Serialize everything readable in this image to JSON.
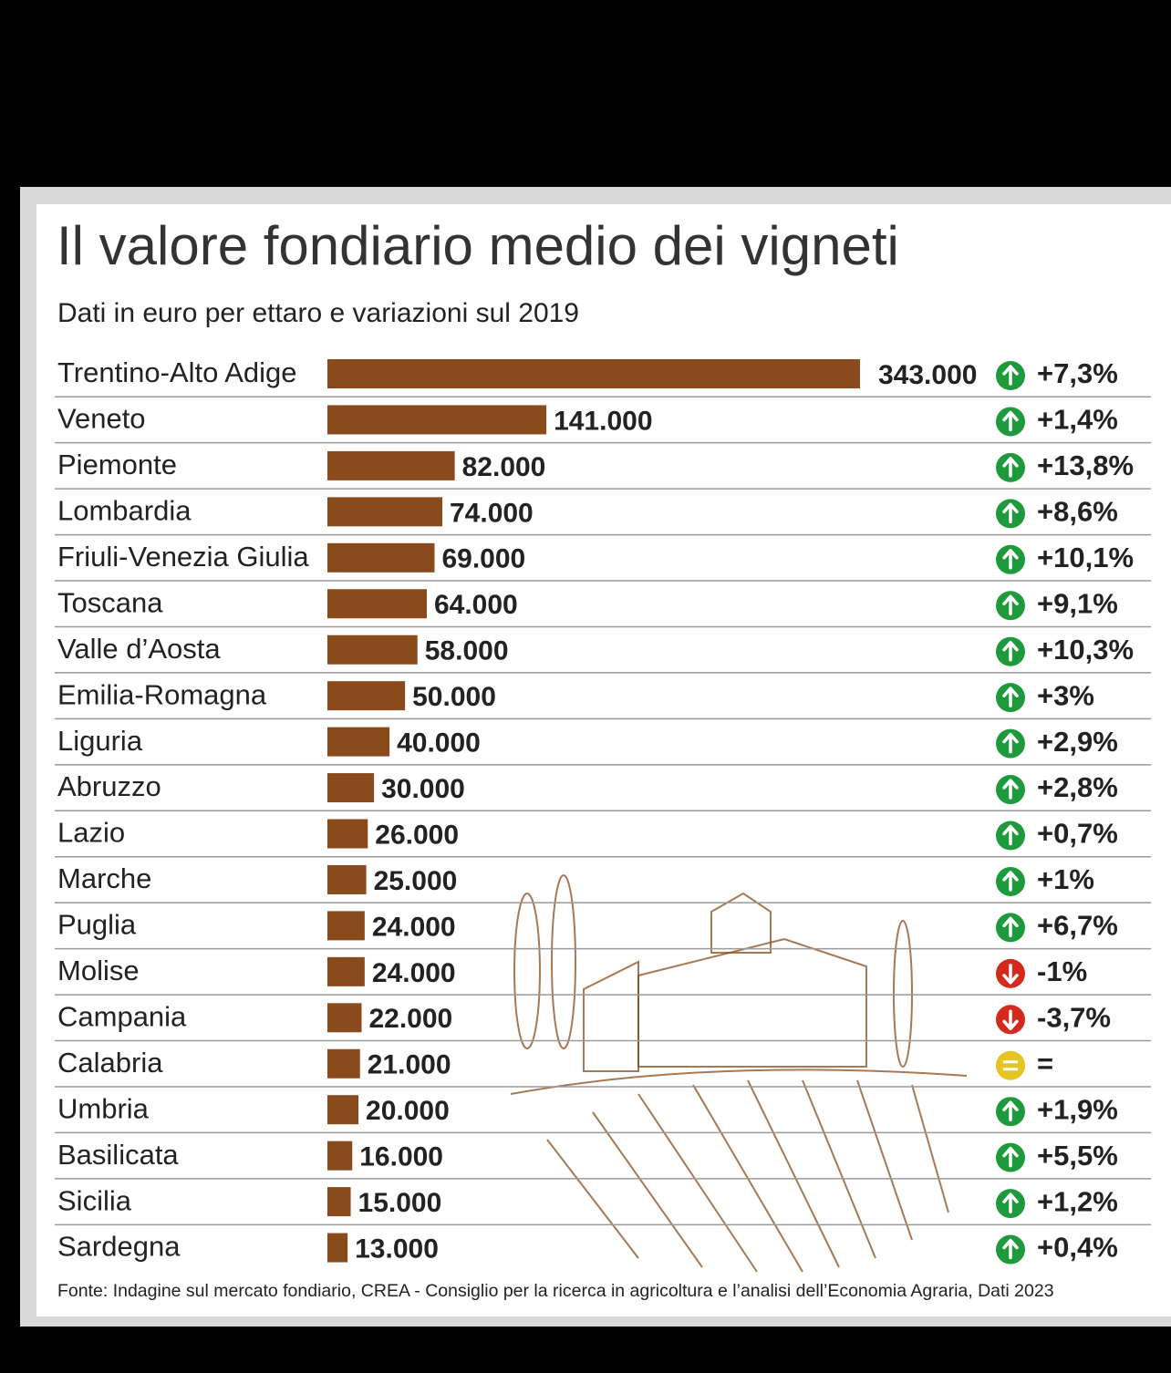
{
  "chart_data": {
    "type": "bar",
    "orientation": "horizontal",
    "title": "Il valore fondiario medio dei vigneti",
    "subtitle": "Dati in euro per ettaro e variazioni sul 2019",
    "source": "Fonte: Indagine sul mercato fondiario, CREA - Consiglio per la ricerca in agricoltura e l’analisi dell’Economia Agraria, Dati 2023",
    "categories": [
      "Trentino-Alto Adige",
      "Veneto",
      "Piemonte",
      "Lombardia",
      "Friuli-Venezia Giulia",
      "Toscana",
      "Valle d’Aosta",
      "Emilia-Romagna",
      "Liguria",
      "Abruzzo",
      "Lazio",
      "Marche",
      "Puglia",
      "Molise",
      "Campania",
      "Calabria",
      "Umbria",
      "Basilicata",
      "Sicilia",
      "Sardegna"
    ],
    "values": [
      343000,
      141000,
      82000,
      74000,
      69000,
      64000,
      58000,
      50000,
      40000,
      30000,
      26000,
      25000,
      24000,
      24000,
      22000,
      21000,
      20000,
      16000,
      15000,
      13000
    ],
    "value_labels": [
      "343.000",
      "141.000",
      "82.000",
      "74.000",
      "69.000",
      "64.000",
      "58.000",
      "50.000",
      "40.000",
      "30.000",
      "26.000",
      "25.000",
      "24.000",
      "24.000",
      "22.000",
      "21.000",
      "20.000",
      "16.000",
      "15.000",
      "13.000"
    ],
    "color": "#8a4b1c",
    "xlim": [
      0,
      343000
    ],
    "changes": {
      "values": [
        7.3,
        1.4,
        13.8,
        8.6,
        10.1,
        9.1,
        10.3,
        3,
        2.9,
        2.8,
        0.7,
        1,
        6.7,
        -1,
        -3.7,
        0,
        1.9,
        5.5,
        1.2,
        0.4
      ],
      "value_labels": [
        "+7,3%",
        "+1,4%",
        "+13,8%",
        "+8,6%",
        "+10,1%",
        "+9,1%",
        "+10,3%",
        "+3%",
        "+2,9%",
        "+2,8%",
        "+0,7%",
        "+1%",
        "+6,7%",
        "-1%",
        "-3,7%",
        "=",
        "+1,9%",
        "+5,5%",
        "+1,2%",
        "+0,4%"
      ],
      "colors": {
        "up": "#1e9a3c",
        "down": "#d42a1e",
        "equal": "#e6c421"
      }
    }
  }
}
